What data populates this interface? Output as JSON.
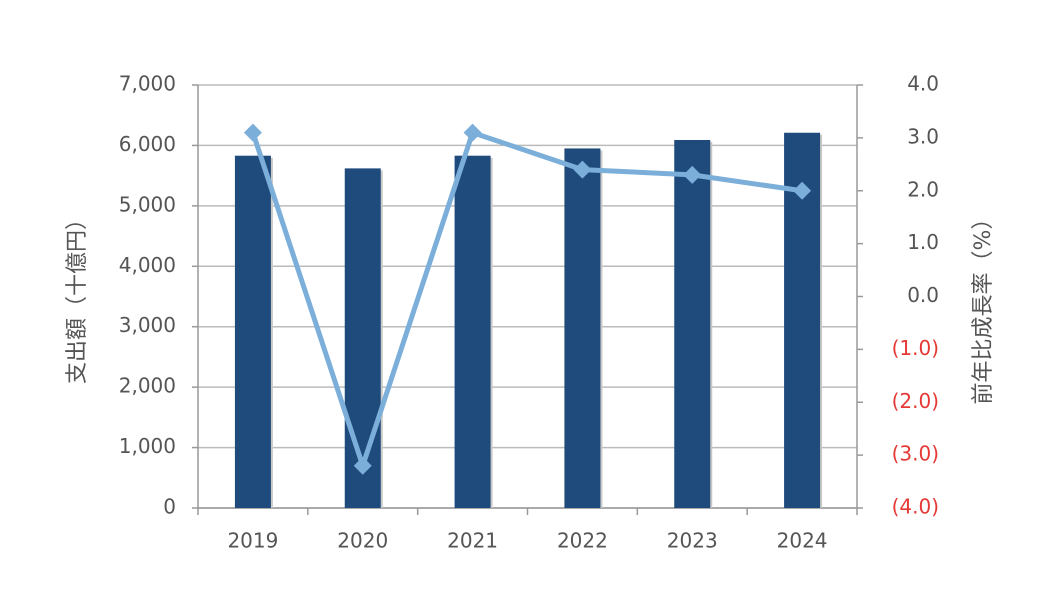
{
  "chart_data": {
    "type": "bar_line",
    "categories": [
      "2019",
      "2020",
      "2021",
      "2022",
      "2023",
      "2024"
    ],
    "y_label": "支出額（十億円）",
    "y2_label": "前年比成長率（%）",
    "series": [
      {
        "type": "bar",
        "color": "#1f4a7c",
        "values": [
          5830,
          5620,
          5830,
          5950,
          6090,
          6210
        ]
      },
      {
        "type": "line",
        "axis": "y2",
        "color": "#7bafd9",
        "values": [
          3.1,
          -3.2,
          3.1,
          2.4,
          2.3,
          2.0
        ]
      }
    ],
    "ylim": [
      0,
      7000
    ],
    "yticks": [
      0,
      {
        "value": 1000,
        "label": "1,000"
      },
      {
        "value": 2000,
        "label": "2,000"
      },
      {
        "value": 3000,
        "label": "3,000"
      },
      {
        "value": 4000,
        "label": "4,000"
      },
      {
        "value": 5000,
        "label": "5,000"
      },
      {
        "value": 6000,
        "label": "6,000"
      },
      {
        "value": 7000,
        "label": "7,000"
      }
    ],
    "y2lim": [
      -4,
      4
    ],
    "y2ticks": [
      {
        "value": -4,
        "label": "(4.0)"
      },
      {
        "value": -3,
        "label": "(3.0)"
      },
      {
        "value": -2,
        "label": "(2.0)"
      },
      {
        "value": -1,
        "label": "(1.0)"
      },
      {
        "value": 0,
        "label": "0.0"
      },
      {
        "value": 1,
        "label": "1.0"
      },
      {
        "value": 2,
        "label": "2.0"
      },
      {
        "value": 3,
        "label": "3.0"
      },
      {
        "value": 4,
        "label": "4.0"
      }
    ],
    "negative_tick_color": "#e53935",
    "grid": true
  }
}
